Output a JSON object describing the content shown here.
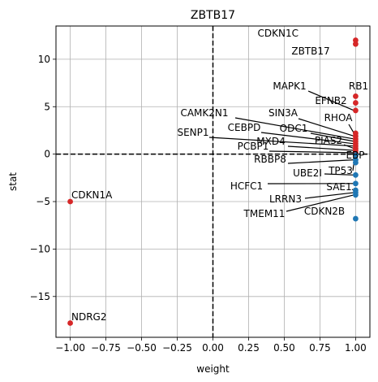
{
  "chart_data": {
    "type": "scatter",
    "title": "ZBTB17",
    "xlabel": "weight",
    "ylabel": "stat",
    "xlim": [
      -1.1,
      1.1
    ],
    "ylim": [
      -19.3,
      13.5
    ],
    "xticks": [
      "−1.00",
      "−0.75",
      "−0.50",
      "−0.25",
      "0.00",
      "0.25",
      "0.50",
      "0.75",
      "1.00"
    ],
    "xtick_values": [
      -1.0,
      -0.75,
      -0.5,
      -0.25,
      0.0,
      0.25,
      0.5,
      0.75,
      1.0
    ],
    "yticks": [
      "−15",
      "−10",
      "−5",
      "0",
      "5",
      "10"
    ],
    "ytick_values": [
      -15,
      -10,
      -5,
      0,
      5,
      10
    ],
    "grid": true,
    "reference_lines": {
      "x": 0,
      "y": 0
    },
    "colors": {
      "positive": "#d62728",
      "negative": "#1f77b4"
    },
    "points": [
      {
        "label": "CDKN1C",
        "x": 1.0,
        "y": 12.0,
        "color": "#d62728"
      },
      {
        "label": "ZBTB17",
        "x": 1.0,
        "y": 11.6,
        "color": "#d62728"
      },
      {
        "label": "RB1",
        "x": 1.0,
        "y": 6.1,
        "color": "#d62728"
      },
      {
        "label": "EFNB2",
        "x": 1.0,
        "y": 5.4,
        "color": "#d62728"
      },
      {
        "label": "MAPK1",
        "x": 1.0,
        "y": 4.6,
        "color": "#d62728"
      },
      {
        "label": "RHOA",
        "x": 1.0,
        "y": 2.2,
        "color": "#d62728"
      },
      {
        "label": "SIN3A",
        "x": 1.0,
        "y": 1.9,
        "color": "#d62728"
      },
      {
        "label": "CAMK2N1",
        "x": 1.0,
        "y": 1.6,
        "color": "#d62728"
      },
      {
        "label": "ODC1",
        "x": 1.0,
        "y": 1.35,
        "color": "#d62728"
      },
      {
        "label": "CEBPD",
        "x": 1.0,
        "y": 1.1,
        "color": "#d62728"
      },
      {
        "label": "SENP1",
        "x": 1.0,
        "y": 0.85,
        "color": "#d62728"
      },
      {
        "label": "PIAS2",
        "x": 1.0,
        "y": 0.6,
        "color": "#d62728"
      },
      {
        "label": "MXD4",
        "x": 1.0,
        "y": 0.4,
        "color": "#d62728"
      },
      {
        "label": "PCBP1",
        "x": 1.0,
        "y": 0.15,
        "color": "#d62728"
      },
      {
        "label": "EBP",
        "x": 1.0,
        "y": -0.1,
        "color": "#1f77b4"
      },
      {
        "label": "RBBP8",
        "x": 1.0,
        "y": -0.6,
        "color": "#1f77b4"
      },
      {
        "label": "TP53",
        "x": 1.0,
        "y": -0.9,
        "color": "#1f77b4"
      },
      {
        "label": "UBE2I",
        "x": 1.0,
        "y": -2.2,
        "color": "#1f77b4"
      },
      {
        "label": "HCFC1",
        "x": 1.0,
        "y": -3.1,
        "color": "#1f77b4"
      },
      {
        "label": "SAE1",
        "x": 1.0,
        "y": -3.8,
        "color": "#1f77b4"
      },
      {
        "label": "LRRN3",
        "x": 1.0,
        "y": -4.05,
        "color": "#1f77b4"
      },
      {
        "label": "TMEM11",
        "x": 1.0,
        "y": -4.3,
        "color": "#1f77b4"
      },
      {
        "label": "CDKN2B",
        "x": 1.0,
        "y": -6.8,
        "color": "#1f77b4"
      },
      {
        "label": "CDKN1A",
        "x": -1.0,
        "y": -5.0,
        "color": "#d62728"
      },
      {
        "label": "NDRG2",
        "x": -1.0,
        "y": -17.8,
        "color": "#d62728"
      }
    ]
  }
}
